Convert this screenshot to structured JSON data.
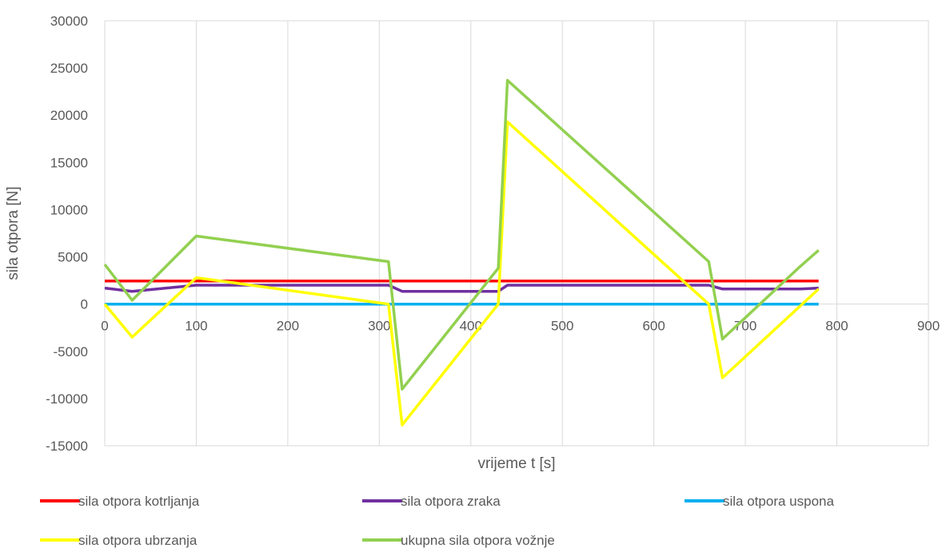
{
  "chart_data": {
    "type": "line",
    "title": "",
    "xlabel": "vrijeme t [s]",
    "ylabel": "sila otpora [N]",
    "xlim": [
      0,
      900
    ],
    "ylim": [
      -15000,
      30000
    ],
    "xticks": [
      0,
      100,
      200,
      300,
      400,
      500,
      600,
      700,
      800,
      900
    ],
    "yticks": [
      -15000,
      -10000,
      -5000,
      0,
      5000,
      10000,
      15000,
      20000,
      25000,
      30000
    ],
    "grid": "vertical",
    "legend_position": "bottom",
    "series": [
      {
        "name": "sila otpora kotrljanja",
        "color": "#ff0000",
        "points": [
          [
            0,
            2450
          ],
          [
            780,
            2450
          ]
        ]
      },
      {
        "name": "sila otpora zraka",
        "color": "#7030a0",
        "points": [
          [
            0,
            1700
          ],
          [
            30,
            1350
          ],
          [
            100,
            2000
          ],
          [
            310,
            2000
          ],
          [
            325,
            1350
          ],
          [
            430,
            1350
          ],
          [
            440,
            2000
          ],
          [
            660,
            2000
          ],
          [
            675,
            1600
          ],
          [
            760,
            1600
          ],
          [
            780,
            1700
          ]
        ]
      },
      {
        "name": "sila otpora uspona",
        "color": "#00b0f0",
        "points": [
          [
            0,
            0
          ],
          [
            780,
            0
          ]
        ]
      },
      {
        "name": "sila otpora ubrzanja",
        "color": "#ffff00",
        "points": [
          [
            0,
            0
          ],
          [
            30,
            -3500
          ],
          [
            100,
            2800
          ],
          [
            310,
            0
          ],
          [
            325,
            -12800
          ],
          [
            430,
            0
          ],
          [
            440,
            19300
          ],
          [
            660,
            0
          ],
          [
            675,
            -7800
          ],
          [
            780,
            1600
          ]
        ]
      },
      {
        "name": "ukupna sila otpora vožnje",
        "color": "#92d050",
        "points": [
          [
            0,
            4200
          ],
          [
            30,
            400
          ],
          [
            100,
            7200
          ],
          [
            310,
            4500
          ],
          [
            325,
            -9000
          ],
          [
            430,
            3800
          ],
          [
            440,
            23700
          ],
          [
            660,
            4500
          ],
          [
            675,
            -3700
          ],
          [
            760,
            4000
          ],
          [
            780,
            5700
          ]
        ]
      }
    ]
  }
}
